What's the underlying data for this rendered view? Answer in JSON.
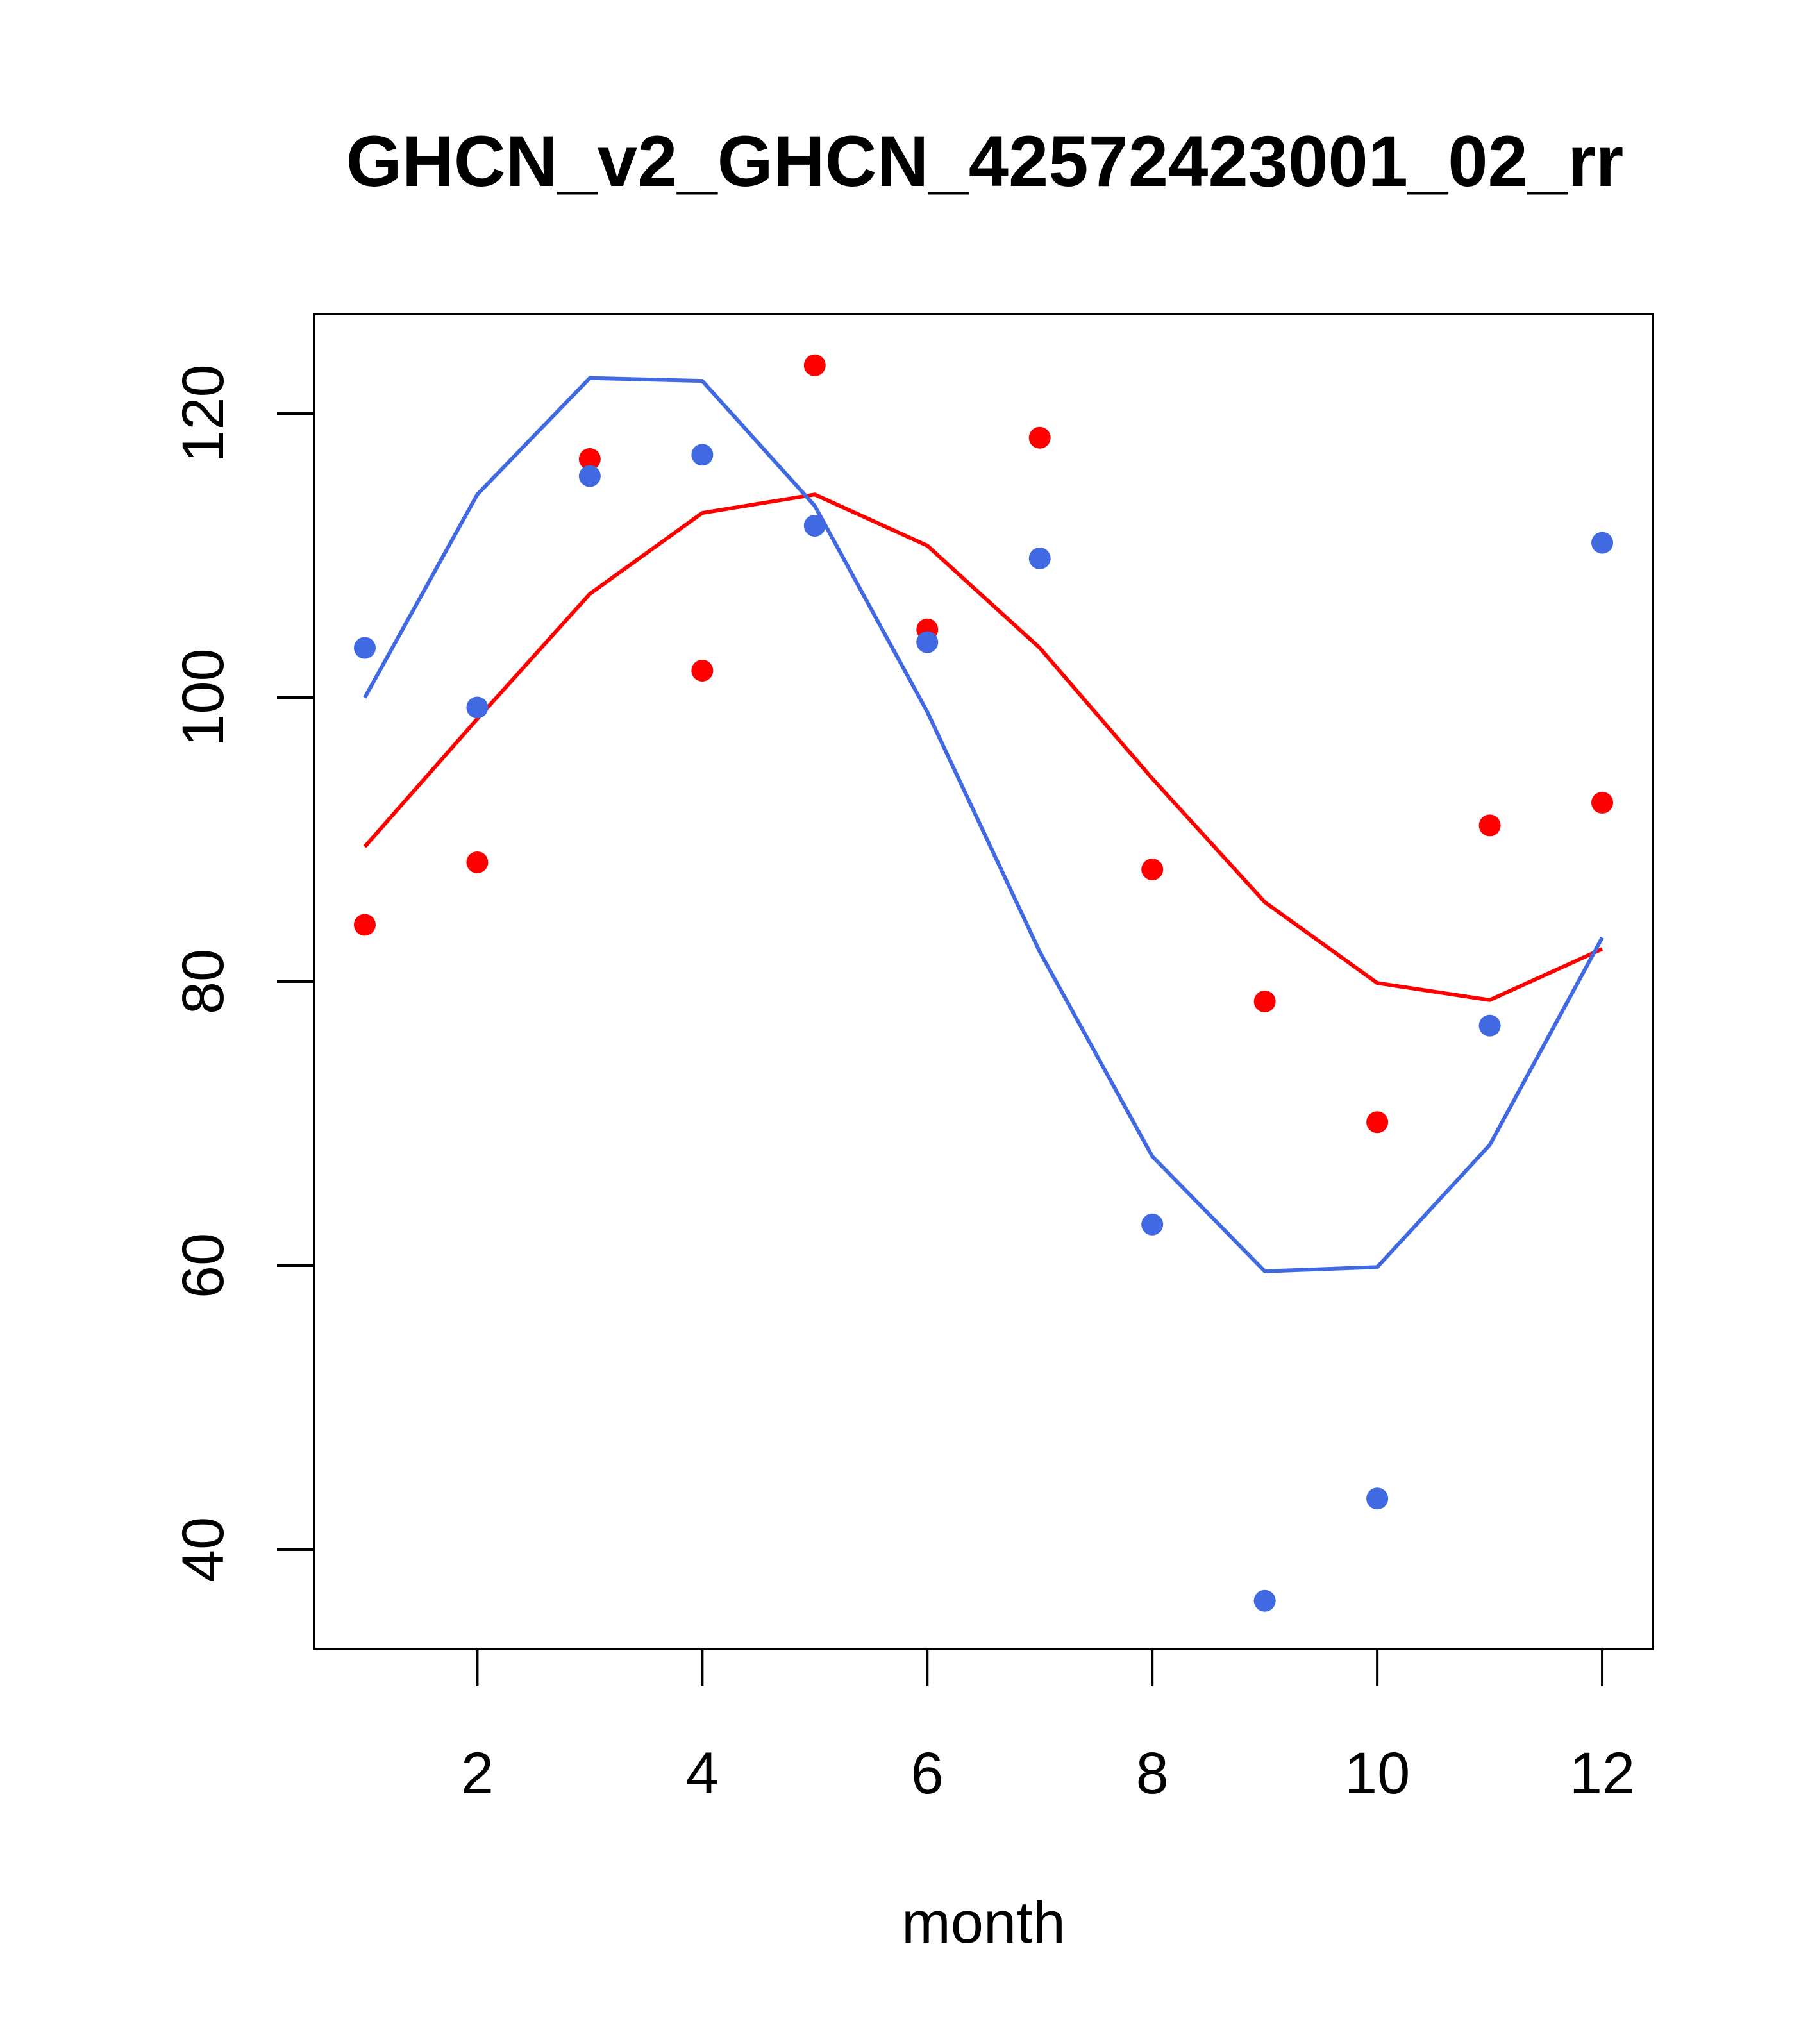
{
  "chart_data": {
    "type": "scatter",
    "title": "GHCN_v2_GHCN_42572423001_02_rr",
    "xlabel": "month",
    "ylabel": "",
    "xlim": [
      0.55,
      12.45
    ],
    "ylim": [
      33,
      127
    ],
    "xticks": [
      2,
      4,
      6,
      8,
      10,
      12
    ],
    "yticks": [
      40,
      60,
      80,
      100,
      120
    ],
    "grid": false,
    "legend": "none",
    "series": [
      {
        "color": "#ff0000",
        "mark": "points",
        "x": [
          1,
          2,
          3,
          4,
          5,
          6,
          7,
          8,
          9,
          10,
          11,
          12
        ],
        "y": [
          84.0,
          88.4,
          116.8,
          101.9,
          123.4,
          104.8,
          118.3,
          87.9,
          78.6,
          70.1,
          91.0,
          92.6
        ]
      },
      {
        "color": "#ff0000",
        "mark": "line",
        "x": [
          1,
          2,
          3,
          4,
          5,
          6,
          7,
          8,
          9,
          10,
          11,
          12
        ],
        "y": [
          89.5,
          98.5,
          107.3,
          113.0,
          114.3,
          110.7,
          103.5,
          94.3,
          85.6,
          79.9,
          78.7,
          82.3
        ]
      },
      {
        "color": "#4169e1",
        "mark": "points",
        "x": [
          1,
          2,
          3,
          4,
          5,
          6,
          7,
          8,
          9,
          10,
          11,
          12
        ],
        "y": [
          103.5,
          99.3,
          115.6,
          117.1,
          112.1,
          103.9,
          109.8,
          62.9,
          36.4,
          43.6,
          76.9,
          110.9
        ]
      },
      {
        "color": "#4169e1",
        "mark": "line",
        "x": [
          1,
          2,
          3,
          4,
          5,
          6,
          7,
          8,
          9,
          10,
          11,
          12
        ],
        "y": [
          100.0,
          114.3,
          122.5,
          122.3,
          113.5,
          99.0,
          82.1,
          67.7,
          59.6,
          59.9,
          68.5,
          83.1
        ]
      }
    ]
  }
}
